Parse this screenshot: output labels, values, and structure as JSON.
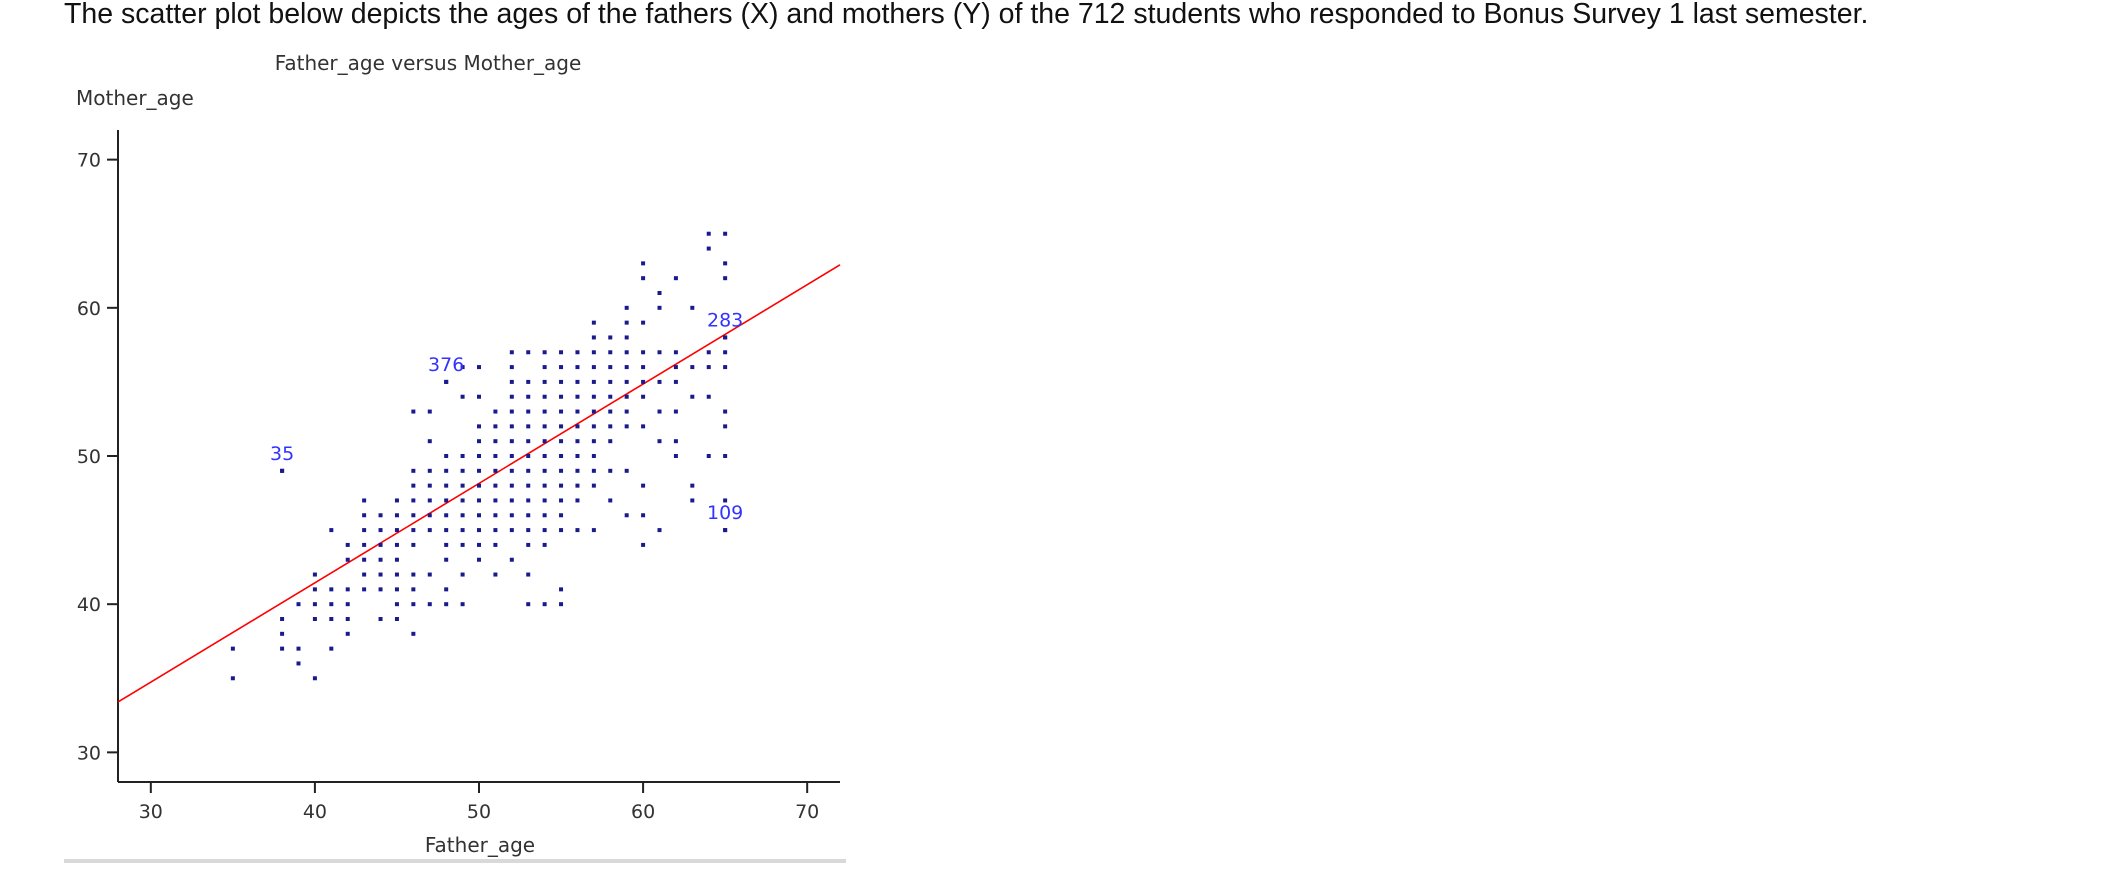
{
  "intro_text": "The scatter plot below depicts the ages of the fathers (X) and mothers (Y) of the 712 students who responded to Bonus Survey 1 last semester.",
  "chart_data": {
    "type": "scatter",
    "title": "Father_age versus Mother_age",
    "xlabel": "Father_age",
    "ylabel": "Mother_age",
    "xlim": [
      28,
      72
    ],
    "ylim": [
      28,
      72
    ],
    "xticks": [
      30,
      40,
      50,
      60,
      70
    ],
    "yticks": [
      30,
      40,
      50,
      60,
      70
    ],
    "grid": false,
    "point_color": "#1a1a8c",
    "label_color": "#3333ff",
    "line_color": "#ff0000",
    "regression_line": {
      "x0": 28,
      "y0": 33.4,
      "x1": 72,
      "y1": 62.9
    },
    "labeled_points": [
      {
        "label": "35",
        "x": 38,
        "y": 49
      },
      {
        "label": "376",
        "x": 48,
        "y": 55
      },
      {
        "label": "283",
        "x": 65,
        "y": 58
      },
      {
        "label": "109",
        "x": 65,
        "y": 45
      }
    ],
    "points": [
      [
        35,
        35
      ],
      [
        35,
        37
      ],
      [
        38,
        49
      ],
      [
        38,
        37
      ],
      [
        38,
        38
      ],
      [
        38,
        39
      ],
      [
        39,
        36
      ],
      [
        39,
        37
      ],
      [
        39,
        40
      ],
      [
        40,
        35
      ],
      [
        40,
        39
      ],
      [
        40,
        40
      ],
      [
        40,
        41
      ],
      [
        40,
        42
      ],
      [
        41,
        37
      ],
      [
        41,
        39
      ],
      [
        41,
        40
      ],
      [
        41,
        41
      ],
      [
        41,
        45
      ],
      [
        42,
        38
      ],
      [
        42,
        39
      ],
      [
        42,
        40
      ],
      [
        42,
        41
      ],
      [
        42,
        43
      ],
      [
        42,
        44
      ],
      [
        43,
        41
      ],
      [
        43,
        42
      ],
      [
        43,
        43
      ],
      [
        43,
        44
      ],
      [
        43,
        45
      ],
      [
        43,
        46
      ],
      [
        43,
        47
      ],
      [
        44,
        39
      ],
      [
        44,
        41
      ],
      [
        44,
        42
      ],
      [
        44,
        43
      ],
      [
        44,
        44
      ],
      [
        44,
        45
      ],
      [
        44,
        46
      ],
      [
        45,
        39
      ],
      [
        45,
        40
      ],
      [
        45,
        41
      ],
      [
        45,
        42
      ],
      [
        45,
        43
      ],
      [
        45,
        44
      ],
      [
        45,
        45
      ],
      [
        45,
        46
      ],
      [
        45,
        47
      ],
      [
        46,
        38
      ],
      [
        46,
        40
      ],
      [
        46,
        41
      ],
      [
        46,
        42
      ],
      [
        46,
        44
      ],
      [
        46,
        45
      ],
      [
        46,
        46
      ],
      [
        46,
        47
      ],
      [
        46,
        48
      ],
      [
        46,
        49
      ],
      [
        46,
        53
      ],
      [
        47,
        40
      ],
      [
        47,
        42
      ],
      [
        47,
        45
      ],
      [
        47,
        46
      ],
      [
        47,
        47
      ],
      [
        47,
        48
      ],
      [
        47,
        49
      ],
      [
        47,
        51
      ],
      [
        47,
        53
      ],
      [
        48,
        40
      ],
      [
        48,
        41
      ],
      [
        48,
        43
      ],
      [
        48,
        44
      ],
      [
        48,
        45
      ],
      [
        48,
        46
      ],
      [
        48,
        47
      ],
      [
        48,
        48
      ],
      [
        48,
        49
      ],
      [
        48,
        50
      ],
      [
        48,
        55
      ],
      [
        49,
        40
      ],
      [
        49,
        42
      ],
      [
        49,
        44
      ],
      [
        49,
        45
      ],
      [
        49,
        46
      ],
      [
        49,
        47
      ],
      [
        49,
        48
      ],
      [
        49,
        49
      ],
      [
        49,
        50
      ],
      [
        49,
        54
      ],
      [
        49,
        56
      ],
      [
        50,
        43
      ],
      [
        50,
        44
      ],
      [
        50,
        45
      ],
      [
        50,
        46
      ],
      [
        50,
        47
      ],
      [
        50,
        48
      ],
      [
        50,
        49
      ],
      [
        50,
        50
      ],
      [
        50,
        51
      ],
      [
        50,
        52
      ],
      [
        50,
        54
      ],
      [
        50,
        56
      ],
      [
        51,
        42
      ],
      [
        51,
        44
      ],
      [
        51,
        45
      ],
      [
        51,
        46
      ],
      [
        51,
        47
      ],
      [
        51,
        48
      ],
      [
        51,
        49
      ],
      [
        51,
        50
      ],
      [
        51,
        51
      ],
      [
        51,
        52
      ],
      [
        51,
        53
      ],
      [
        52,
        43
      ],
      [
        52,
        45
      ],
      [
        52,
        46
      ],
      [
        52,
        47
      ],
      [
        52,
        48
      ],
      [
        52,
        49
      ],
      [
        52,
        50
      ],
      [
        52,
        51
      ],
      [
        52,
        52
      ],
      [
        52,
        53
      ],
      [
        52,
        54
      ],
      [
        52,
        55
      ],
      [
        52,
        56
      ],
      [
        52,
        57
      ],
      [
        53,
        40
      ],
      [
        53,
        42
      ],
      [
        53,
        44
      ],
      [
        53,
        45
      ],
      [
        53,
        46
      ],
      [
        53,
        47
      ],
      [
        53,
        48
      ],
      [
        53,
        49
      ],
      [
        53,
        50
      ],
      [
        53,
        51
      ],
      [
        53,
        52
      ],
      [
        53,
        53
      ],
      [
        53,
        54
      ],
      [
        53,
        55
      ],
      [
        53,
        57
      ],
      [
        54,
        40
      ],
      [
        54,
        44
      ],
      [
        54,
        45
      ],
      [
        54,
        46
      ],
      [
        54,
        47
      ],
      [
        54,
        48
      ],
      [
        54,
        49
      ],
      [
        54,
        50
      ],
      [
        54,
        51
      ],
      [
        54,
        52
      ],
      [
        54,
        53
      ],
      [
        54,
        54
      ],
      [
        54,
        55
      ],
      [
        54,
        56
      ],
      [
        54,
        57
      ],
      [
        55,
        40
      ],
      [
        55,
        41
      ],
      [
        55,
        45
      ],
      [
        55,
        46
      ],
      [
        55,
        47
      ],
      [
        55,
        48
      ],
      [
        55,
        49
      ],
      [
        55,
        50
      ],
      [
        55,
        51
      ],
      [
        55,
        52
      ],
      [
        55,
        53
      ],
      [
        55,
        54
      ],
      [
        55,
        55
      ],
      [
        55,
        56
      ],
      [
        55,
        57
      ],
      [
        56,
        45
      ],
      [
        56,
        47
      ],
      [
        56,
        48
      ],
      [
        56,
        49
      ],
      [
        56,
        50
      ],
      [
        56,
        51
      ],
      [
        56,
        52
      ],
      [
        56,
        53
      ],
      [
        56,
        54
      ],
      [
        56,
        55
      ],
      [
        56,
        56
      ],
      [
        56,
        57
      ],
      [
        57,
        45
      ],
      [
        57,
        48
      ],
      [
        57,
        49
      ],
      [
        57,
        50
      ],
      [
        57,
        51
      ],
      [
        57,
        52
      ],
      [
        57,
        53
      ],
      [
        57,
        54
      ],
      [
        57,
        55
      ],
      [
        57,
        56
      ],
      [
        57,
        57
      ],
      [
        57,
        58
      ],
      [
        57,
        59
      ],
      [
        58,
        47
      ],
      [
        58,
        49
      ],
      [
        58,
        51
      ],
      [
        58,
        52
      ],
      [
        58,
        53
      ],
      [
        58,
        54
      ],
      [
        58,
        55
      ],
      [
        58,
        56
      ],
      [
        58,
        57
      ],
      [
        58,
        58
      ],
      [
        59,
        46
      ],
      [
        59,
        49
      ],
      [
        59,
        52
      ],
      [
        59,
        53
      ],
      [
        59,
        54
      ],
      [
        59,
        55
      ],
      [
        59,
        56
      ],
      [
        59,
        57
      ],
      [
        59,
        58
      ],
      [
        59,
        59
      ],
      [
        59,
        60
      ],
      [
        60,
        44
      ],
      [
        60,
        46
      ],
      [
        60,
        48
      ],
      [
        60,
        52
      ],
      [
        60,
        54
      ],
      [
        60,
        55
      ],
      [
        60,
        56
      ],
      [
        60,
        57
      ],
      [
        60,
        59
      ],
      [
        60,
        62
      ],
      [
        60,
        63
      ],
      [
        61,
        45
      ],
      [
        61,
        51
      ],
      [
        61,
        53
      ],
      [
        61,
        55
      ],
      [
        61,
        57
      ],
      [
        61,
        60
      ],
      [
        61,
        61
      ],
      [
        62,
        50
      ],
      [
        62,
        51
      ],
      [
        62,
        53
      ],
      [
        62,
        55
      ],
      [
        62,
        56
      ],
      [
        62,
        57
      ],
      [
        62,
        62
      ],
      [
        63,
        47
      ],
      [
        63,
        48
      ],
      [
        63,
        54
      ],
      [
        63,
        56
      ],
      [
        63,
        60
      ],
      [
        64,
        50
      ],
      [
        64,
        54
      ],
      [
        64,
        56
      ],
      [
        64,
        57
      ],
      [
        64,
        64
      ],
      [
        64,
        65
      ],
      [
        65,
        45
      ],
      [
        65,
        47
      ],
      [
        65,
        50
      ],
      [
        65,
        52
      ],
      [
        65,
        53
      ],
      [
        65,
        56
      ],
      [
        65,
        57
      ],
      [
        65,
        58
      ],
      [
        65,
        62
      ],
      [
        65,
        63
      ],
      [
        65,
        65
      ]
    ]
  }
}
